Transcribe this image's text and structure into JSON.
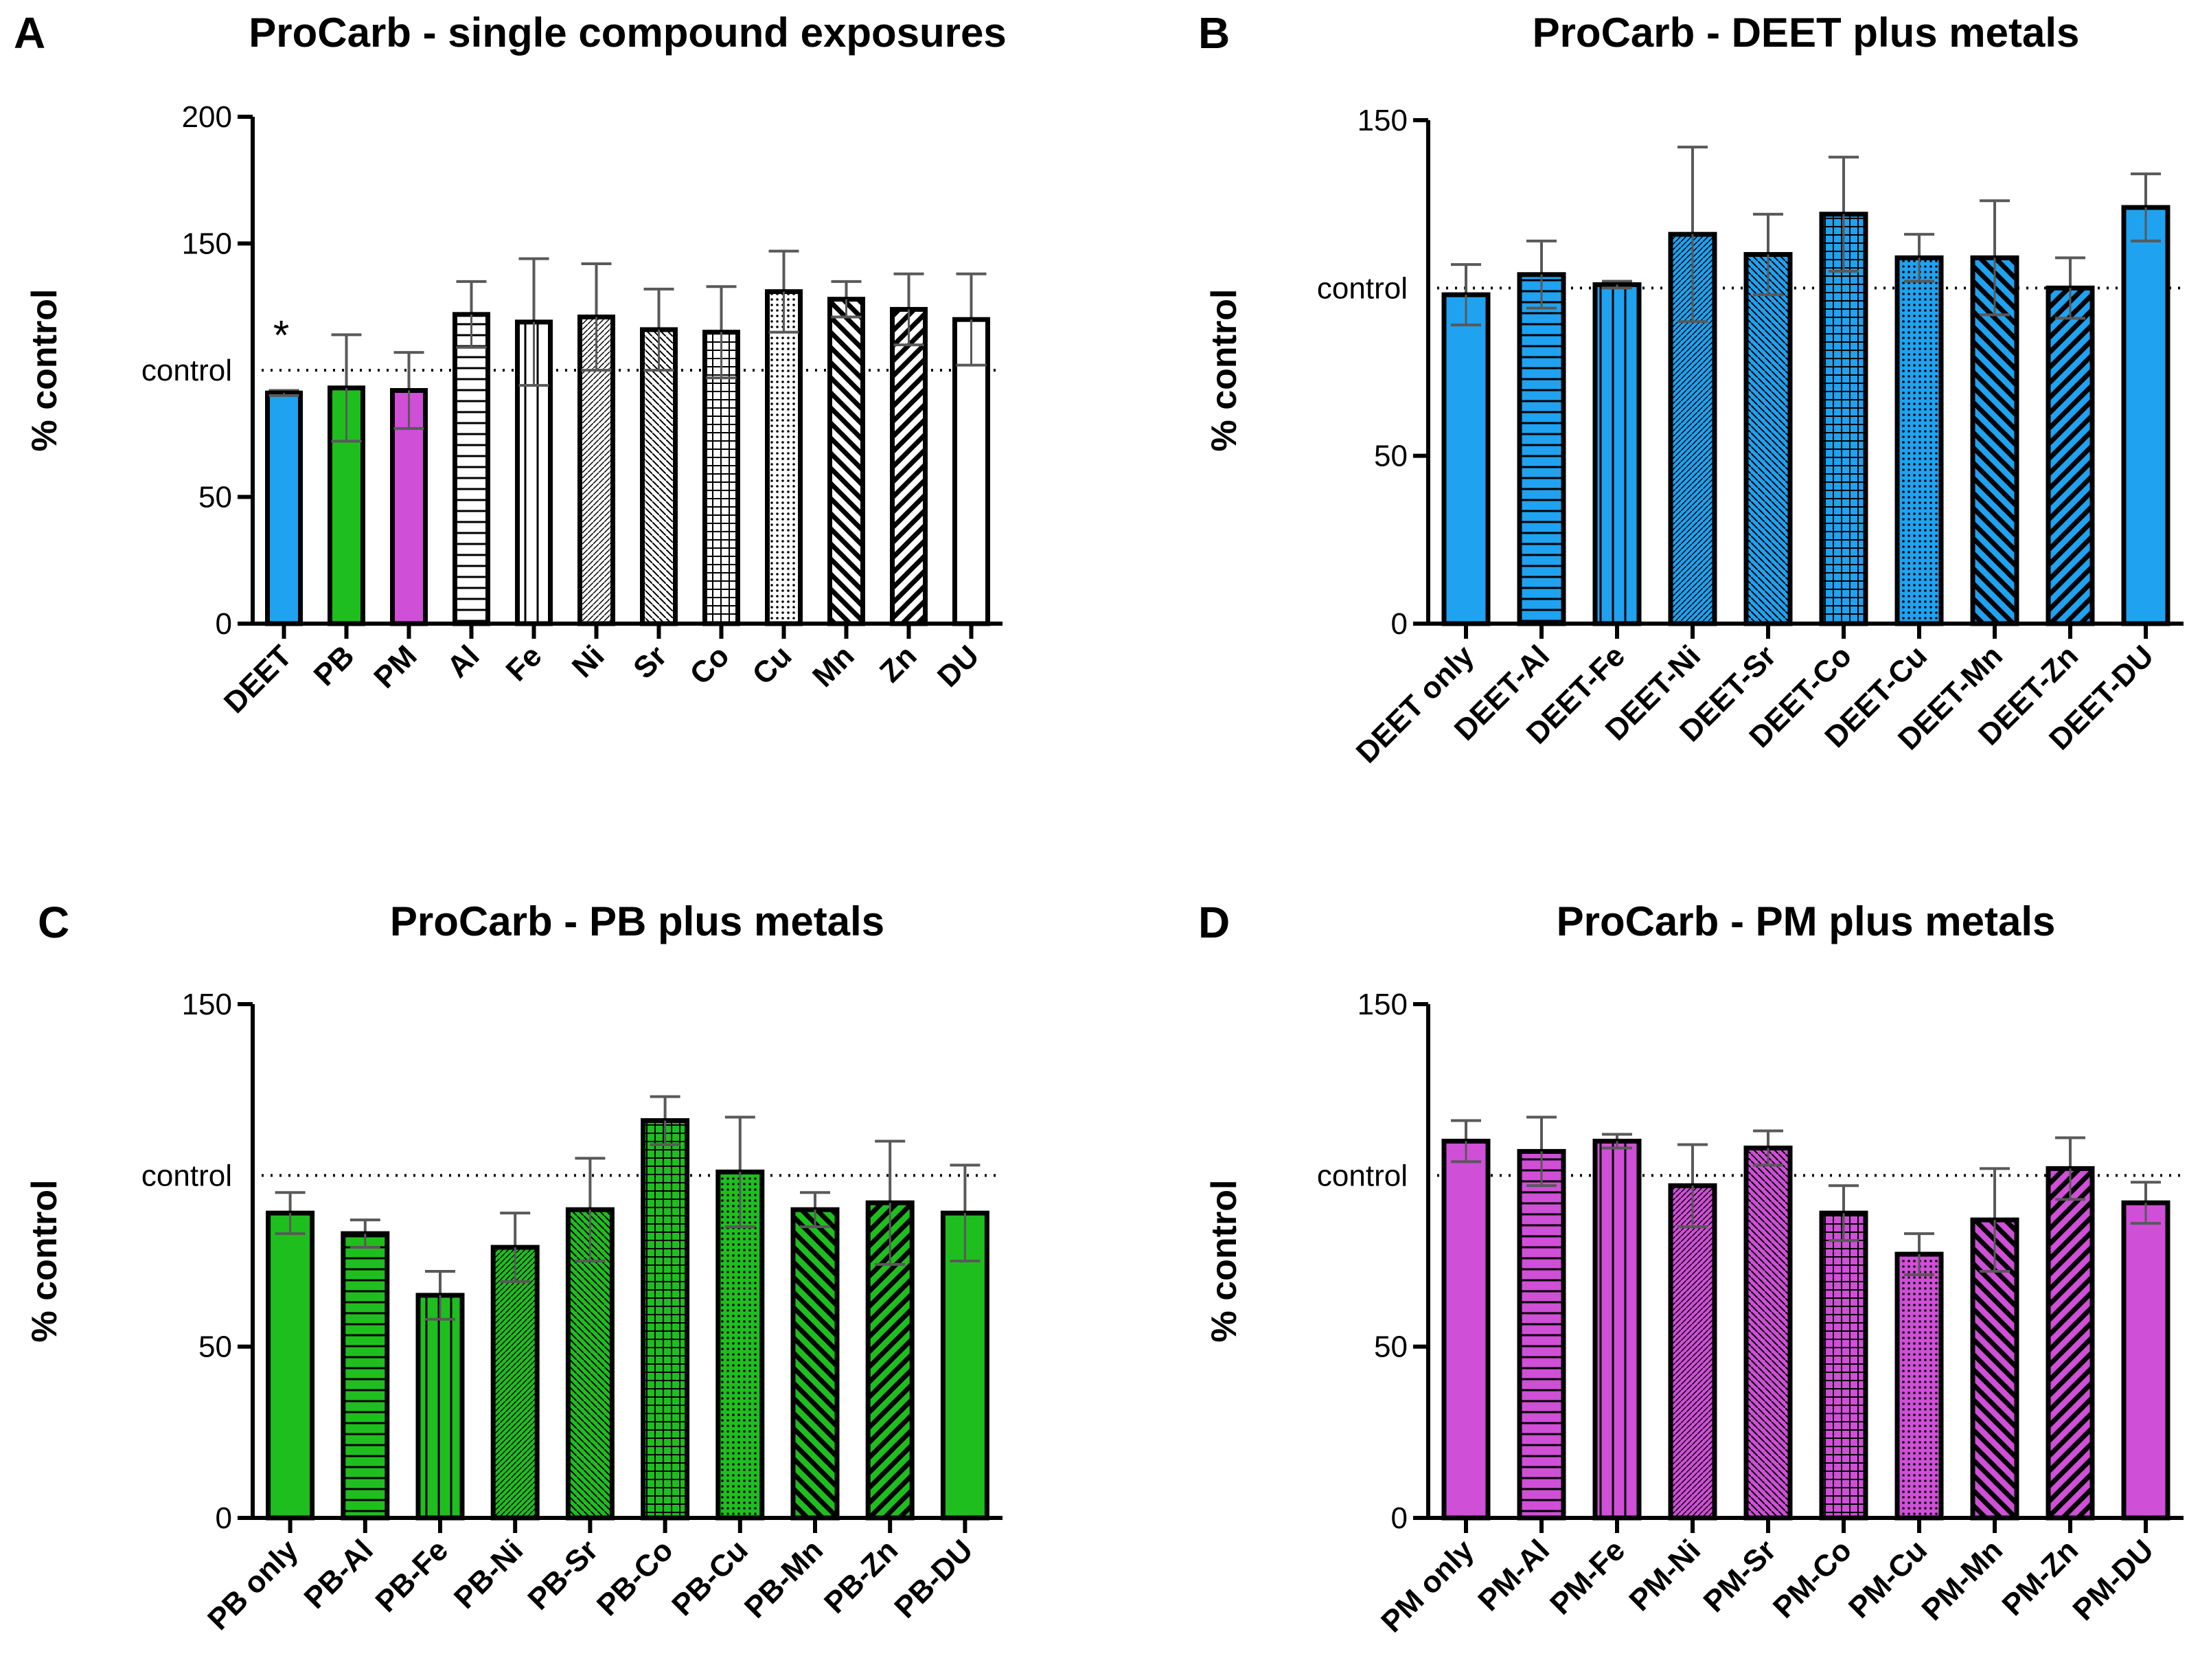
{
  "colors": {
    "blue": "#1fa2f0",
    "green": "#1fbe1f",
    "magenta": "#cf4fd7",
    "white": "#ffffff",
    "axis": "#000000",
    "error": "#595959"
  },
  "chart_data": [
    {
      "id": "A",
      "letter": "A",
      "type": "bar",
      "title": "ProCarb - single compound exposures",
      "ylabel": "% control",
      "ylim": [
        0,
        200
      ],
      "yticks": [
        0,
        50,
        150,
        200
      ],
      "reference": {
        "value": 100,
        "label": "control"
      },
      "categories": [
        "DEET",
        "PB",
        "PM",
        "Al",
        "Fe",
        "Ni",
        "Sr",
        "Co",
        "Cu",
        "Mn",
        "Zn",
        "DU"
      ],
      "values": [
        91,
        93,
        92,
        122,
        119,
        121,
        116,
        115,
        131,
        128,
        124,
        120
      ],
      "errors": [
        1,
        21,
        15,
        13,
        25,
        21,
        16,
        18,
        16,
        7,
        14,
        18
      ],
      "colors": [
        "blue",
        "green",
        "magenta",
        "white",
        "white",
        "white",
        "white",
        "white",
        "white",
        "white",
        "white",
        "white"
      ],
      "patterns": [
        "none",
        "none",
        "none",
        "hlines",
        "vlines",
        "dense-diag-up",
        "diag-down-thin",
        "grid",
        "dots",
        "diag-down-bold",
        "diag-up-bold",
        "none"
      ],
      "annotations": [
        {
          "category": "DEET",
          "text": "*"
        }
      ]
    },
    {
      "id": "B",
      "letter": "B",
      "type": "bar",
      "title": "ProCarb - DEET plus metals",
      "ylabel": "% control",
      "ylim": [
        0,
        150
      ],
      "yticks": [
        0,
        50,
        150
      ],
      "reference": {
        "value": 100,
        "label": "control"
      },
      "categories": [
        "DEET only",
        "DEET-Al",
        "DEET-Fe",
        "DEET-Ni",
        "DEET-Sr",
        "DEET-Co",
        "DEET-Cu",
        "DEET-Mn",
        "DEET-Zn",
        "DEET-DU"
      ],
      "values": [
        98,
        104,
        101,
        116,
        110,
        122,
        109,
        109,
        100,
        124
      ],
      "errors": [
        9,
        10,
        1,
        26,
        12,
        17,
        7,
        17,
        9,
        10
      ],
      "colors": [
        "blue",
        "blue",
        "blue",
        "blue",
        "blue",
        "blue",
        "blue",
        "blue",
        "blue",
        "blue"
      ],
      "patterns": [
        "none",
        "hlines",
        "vlines",
        "dense-diag-up",
        "diag-down-thin",
        "grid",
        "dots",
        "diag-down-bold",
        "diag-up-bold",
        "none"
      ],
      "annotations": []
    },
    {
      "id": "C",
      "letter": "C",
      "type": "bar",
      "title": "ProCarb - PB plus metals",
      "ylabel": "% control",
      "ylim": [
        0,
        150
      ],
      "yticks": [
        0,
        50,
        150
      ],
      "reference": {
        "value": 100,
        "label": "control"
      },
      "categories": [
        "PB only",
        "PB-Al",
        "PB-Fe",
        "PB-Ni",
        "PB-Sr",
        "PB-Co",
        "PB-Cu",
        "PB-Mn",
        "PB-Zn",
        "PB-DU"
      ],
      "values": [
        89,
        83,
        65,
        79,
        90,
        116,
        101,
        90,
        92,
        89
      ],
      "errors": [
        6,
        4,
        7,
        10,
        15,
        7,
        16,
        5,
        18,
        14
      ],
      "colors": [
        "green",
        "green",
        "green",
        "green",
        "green",
        "green",
        "green",
        "green",
        "green",
        "green"
      ],
      "patterns": [
        "none",
        "hlines",
        "vlines",
        "dense-diag-up",
        "diag-down-thin",
        "grid",
        "dots",
        "diag-down-bold",
        "diag-up-bold",
        "none"
      ],
      "annotations": []
    },
    {
      "id": "D",
      "letter": "D",
      "type": "bar",
      "title": "ProCarb - PM plus metals",
      "ylabel": "% control",
      "ylim": [
        0,
        150
      ],
      "yticks": [
        0,
        50,
        150
      ],
      "reference": {
        "value": 100,
        "label": "control"
      },
      "categories": [
        "PM only",
        "PM-Al",
        "PM-Fe",
        "PM-Ni",
        "PM-Sr",
        "PM-Co",
        "PM-Cu",
        "PM-Mn",
        "PM-Zn",
        "PM-DU"
      ],
      "values": [
        110,
        107,
        110,
        97,
        108,
        89,
        77,
        87,
        102,
        92
      ],
      "errors": [
        6,
        10,
        2,
        12,
        5,
        8,
        6,
        15,
        9,
        6
      ],
      "colors": [
        "magenta",
        "magenta",
        "magenta",
        "magenta",
        "magenta",
        "magenta",
        "magenta",
        "magenta",
        "magenta",
        "magenta"
      ],
      "patterns": [
        "none",
        "hlines",
        "vlines",
        "dense-diag-up",
        "diag-down-thin",
        "grid",
        "dots",
        "diag-down-bold",
        "diag-up-bold",
        "none"
      ],
      "annotations": []
    }
  ]
}
